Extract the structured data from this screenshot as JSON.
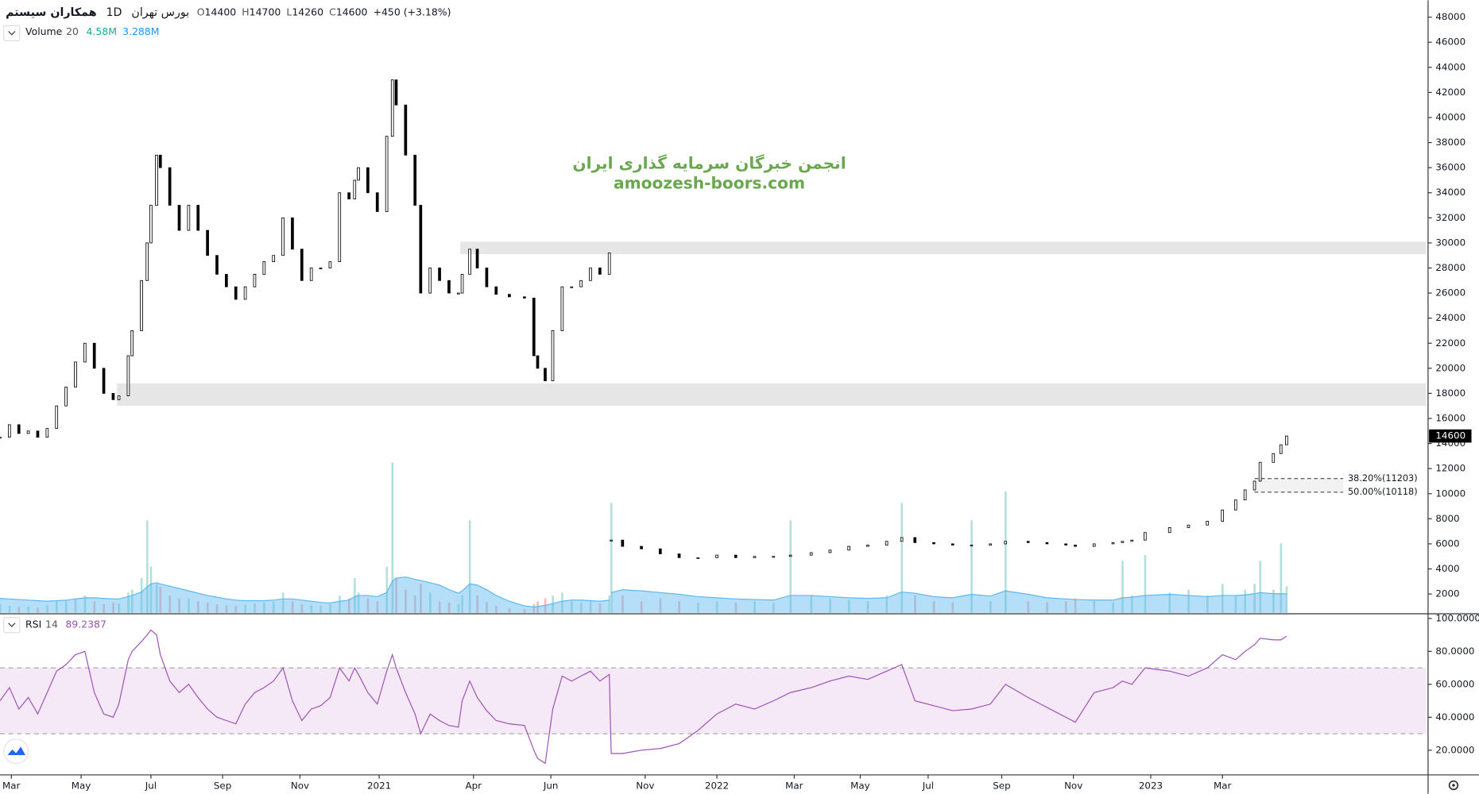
{
  "chart_data": {
    "type": "candlestick",
    "header": {
      "symbol": "همکاران سیستم",
      "interval": "1D",
      "exchange": "بورس تهران",
      "ohlc": [
        {
          "label": "O",
          "value": 14400
        },
        {
          "label": "H",
          "value": 14700
        },
        {
          "label": "L",
          "value": 14260
        },
        {
          "label": "C",
          "value": 14600
        }
      ],
      "change": "+450 (+3.18%)"
    },
    "watermark": [
      "انجمن خبرگان سرمایه گذاری ایران",
      "amoozesh-boors.com"
    ],
    "x": [
      0,
      5,
      10,
      15,
      20,
      25,
      30,
      35,
      40,
      45,
      50,
      55,
      60,
      63,
      68,
      70,
      75,
      78,
      80,
      83,
      85,
      90,
      95,
      100,
      105,
      110,
      115,
      120,
      125,
      130,
      135,
      140,
      145,
      150,
      155,
      160,
      165,
      170,
      175,
      180,
      185,
      188,
      190,
      195,
      200,
      205,
      208,
      210,
      215,
      220,
      223,
      228,
      233,
      238,
      243,
      245,
      249,
      253,
      258,
      263,
      270,
      278,
      283,
      285,
      289,
      293,
      298,
      303,
      308,
      313,
      318,
      323,
      323.5,
      324,
      330,
      340,
      350,
      360,
      370,
      380,
      390,
      400,
      410,
      419,
      430,
      440,
      450,
      460,
      470,
      478,
      485,
      495,
      505,
      515,
      525,
      533,
      545,
      555,
      565,
      570,
      580,
      590,
      595,
      600,
      607,
      620,
      630,
      640,
      648,
      655,
      660,
      665,
      668,
      675,
      679,
      682
    ],
    "close": [
      14500,
      15500,
      14800,
      15000,
      14500,
      15200,
      17000,
      18500,
      20500,
      22000,
      20000,
      18000,
      17500,
      17800,
      21000,
      23000,
      27000,
      30000,
      33000,
      37000,
      36000,
      33000,
      31000,
      33000,
      31000,
      29000,
      27500,
      26500,
      25500,
      26500,
      27500,
      28500,
      29000,
      32000,
      29500,
      27000,
      28000,
      28000,
      28500,
      34000,
      33500,
      35000,
      36000,
      34000,
      32500,
      38500,
      43000,
      41000,
      37000,
      33000,
      26000,
      28000,
      27000,
      26000,
      26000,
      27500,
      29500,
      28000,
      26500,
      25900,
      25700,
      25600,
      21000,
      20000,
      19000,
      23000,
      26500,
      26500,
      27000,
      28000,
      27500,
      29200,
      null,
      6300,
      5800,
      5600,
      5200,
      4900,
      4900,
      5100,
      4900,
      5000,
      5000,
      5100,
      5300,
      5500,
      5800,
      5900,
      6200,
      6500,
      6100,
      6000,
      5900,
      5900,
      6000,
      6200,
      6100,
      6000,
      5900,
      5800,
      6000,
      6100,
      6200,
      6300,
      6900,
      7300,
      7500,
      7800,
      8700,
      9500,
      10300,
      11000,
      12500,
      13200,
      13900,
      14600
    ],
    "up_color": "#ffffff",
    "down_color": "#000000",
    "candle_border": "#000000",
    "xlim": [
      0,
      756
    ],
    "xticks": [
      {
        "value": 6,
        "label": "Mar"
      },
      {
        "value": 43,
        "label": "May"
      },
      {
        "value": 80,
        "label": "Jul"
      },
      {
        "value": 118,
        "label": "Sep"
      },
      {
        "value": 159,
        "label": "Nov"
      },
      {
        "value": 201,
        "label": "2021"
      },
      {
        "value": 251,
        "label": "Apr"
      },
      {
        "value": 292,
        "label": "Jun"
      },
      {
        "value": 342,
        "label": "Nov"
      },
      {
        "value": 380,
        "label": "2022"
      },
      {
        "value": 421,
        "label": "Mar"
      },
      {
        "value": 456,
        "label": "May"
      },
      {
        "value": 492,
        "label": "Jul"
      },
      {
        "value": 531,
        "label": "Sep"
      },
      {
        "value": 569,
        "label": "Nov"
      },
      {
        "value": 610,
        "label": "2023"
      },
      {
        "value": 648,
        "label": "Mar"
      }
    ],
    "ylim": [
      500,
      49350
    ],
    "yticks": [
      2000,
      4000,
      6000,
      8000,
      10000,
      12000,
      14000,
      16000,
      18000,
      20000,
      22000,
      24000,
      26000,
      28000,
      30000,
      32000,
      34000,
      36000,
      38000,
      40000,
      42000,
      44000,
      46000,
      48000
    ],
    "grid": false,
    "last_price": 14600,
    "zones": [
      {
        "x_start": 244,
        "from": 29100,
        "to": 30100,
        "color": "#e6e6e6"
      },
      {
        "x_start": 62,
        "from": 17000,
        "to": 18800,
        "color": "#e6e6e6"
      }
    ],
    "fib_x": [
      665,
      712
    ],
    "fib": [
      {
        "value": 11203,
        "label": "38.20%(11203)"
      },
      {
        "value": 10118,
        "label": "50.00%(10118)"
      }
    ],
    "volume": {
      "name": "Volume",
      "length": 20,
      "value_label": "4.58M",
      "ma_label": "3.288M",
      "up_color": "rgba(38,166,154,0.35)",
      "down_color": "rgba(239,83,80,0.4)",
      "ma_color": "#5cb8f2",
      "label_color": "#26a69a",
      "ma_label_color": "#2196f3",
      "y2lim": [
        0,
        106
      ],
      "values": [
        1.5,
        1.2,
        1.0,
        1.1,
        0.9,
        1.3,
        2.0,
        2.2,
        2.5,
        3.0,
        2.0,
        1.5,
        1.8,
        1.6,
        3.5,
        4.0,
        6.0,
        16.0,
        8.0,
        5.0,
        4.5,
        3.0,
        2.5,
        2.5,
        2.0,
        1.8,
        1.5,
        1.3,
        1.2,
        1.4,
        1.6,
        1.8,
        2.0,
        3.5,
        2.0,
        1.5,
        1.3,
        1.2,
        1.5,
        3.0,
        2.5,
        6.0,
        3.5,
        2.5,
        2.0,
        8.0,
        26.0,
        6.0,
        4.0,
        3.0,
        5.0,
        3.5,
        2.0,
        1.8,
        1.5,
        3.0,
        16.0,
        3.0,
        1.8,
        1.2,
        0.8,
        0.7,
        1.5,
        2.0,
        2.5,
        3.0,
        3.5,
        2.0,
        1.8,
        2.2,
        1.6,
        3.0,
        null,
        19.0,
        3.0,
        2.0,
        2.5,
        2.0,
        1.8,
        2.0,
        1.8,
        2.0,
        1.7,
        16.0,
        3.0,
        2.5,
        2.2,
        2.0,
        3.0,
        19.0,
        3.0,
        2.0,
        1.8,
        16.0,
        2.0,
        21.0,
        2.0,
        1.8,
        2.0,
        2.5,
        2.0,
        1.8,
        9.0,
        3.0,
        10.0,
        3.5,
        4.0,
        3.0,
        5.0,
        3.0,
        4.0,
        5.0,
        9.0,
        4.0,
        12.0,
        4.58
      ],
      "ma_values": [
        2.5,
        2.4,
        2.3,
        2.2,
        2.1,
        2.0,
        2.1,
        2.2,
        2.4,
        2.6,
        2.6,
        2.5,
        2.4,
        2.4,
        2.8,
        3.0,
        3.6,
        4.5,
        5.0,
        5.2,
        5.0,
        4.6,
        4.2,
        3.8,
        3.4,
        3.0,
        2.7,
        2.4,
        2.2,
        2.1,
        2.1,
        2.1,
        2.2,
        2.4,
        2.4,
        2.2,
        2.0,
        1.8,
        1.7,
        2.0,
        2.2,
        2.8,
        3.0,
        3.0,
        2.8,
        3.5,
        5.5,
        6.0,
        6.2,
        5.8,
        5.6,
        5.2,
        4.8,
        4.0,
        3.4,
        3.8,
        5.0,
        4.8,
        4.0,
        3.0,
        2.0,
        1.2,
        1.0,
        1.1,
        1.3,
        1.6,
        2.0,
        2.2,
        2.2,
        2.1,
        2.0,
        2.2,
        null,
        3.5,
        4.0,
        3.8,
        3.5,
        3.2,
        2.8,
        2.6,
        2.4,
        2.3,
        2.2,
        3.0,
        3.0,
        2.8,
        2.6,
        2.5,
        2.6,
        3.6,
        3.4,
        2.8,
        2.6,
        3.2,
        2.9,
        3.8,
        3.2,
        2.6,
        2.4,
        2.3,
        2.2,
        2.2,
        2.6,
        2.7,
        3.0,
        3.2,
        3.0,
        2.8,
        3.0,
        3.0,
        3.1,
        3.3,
        3.5,
        3.3,
        3.3,
        3.288
      ]
    },
    "rsi": {
      "name": "RSI",
      "length": 14,
      "last": 89.2387,
      "color": "#9c52b5",
      "band_color": "rgba(156,39,176,0.1)",
      "ylim": [
        5,
        102.3
      ],
      "yticks": [
        {
          "value": 20,
          "label": "20.0000"
        },
        {
          "value": 40,
          "label": "40.0000"
        },
        {
          "value": 60,
          "label": "60.0000"
        },
        {
          "value": 80,
          "label": "80.0000"
        },
        {
          "value": 100,
          "label": "100.0000"
        }
      ],
      "bands": [
        30,
        70
      ],
      "values": [
        50,
        58,
        45,
        52,
        42,
        55,
        68,
        72,
        78,
        80,
        55,
        42,
        40,
        48,
        75,
        80,
        86,
        90,
        93,
        90,
        78,
        62,
        55,
        60,
        52,
        45,
        40,
        38,
        36,
        48,
        55,
        58,
        62,
        70,
        50,
        38,
        45,
        47,
        52,
        70,
        62,
        70,
        66,
        55,
        48,
        68,
        78,
        70,
        55,
        42,
        30,
        42,
        38,
        35,
        34,
        50,
        62,
        52,
        44,
        38,
        36,
        35,
        20,
        15,
        12,
        45,
        65,
        62,
        65,
        68,
        62,
        66,
        40,
        18,
        18,
        20,
        21,
        24,
        32,
        42,
        48,
        45,
        50,
        55,
        58,
        62,
        65,
        63,
        68,
        72,
        50,
        47,
        44,
        45,
        48,
        60,
        52,
        46,
        40,
        37,
        55,
        58,
        62,
        60,
        70,
        68,
        65,
        70,
        78,
        75,
        80,
        84,
        88,
        87,
        87,
        89.2387
      ]
    }
  }
}
